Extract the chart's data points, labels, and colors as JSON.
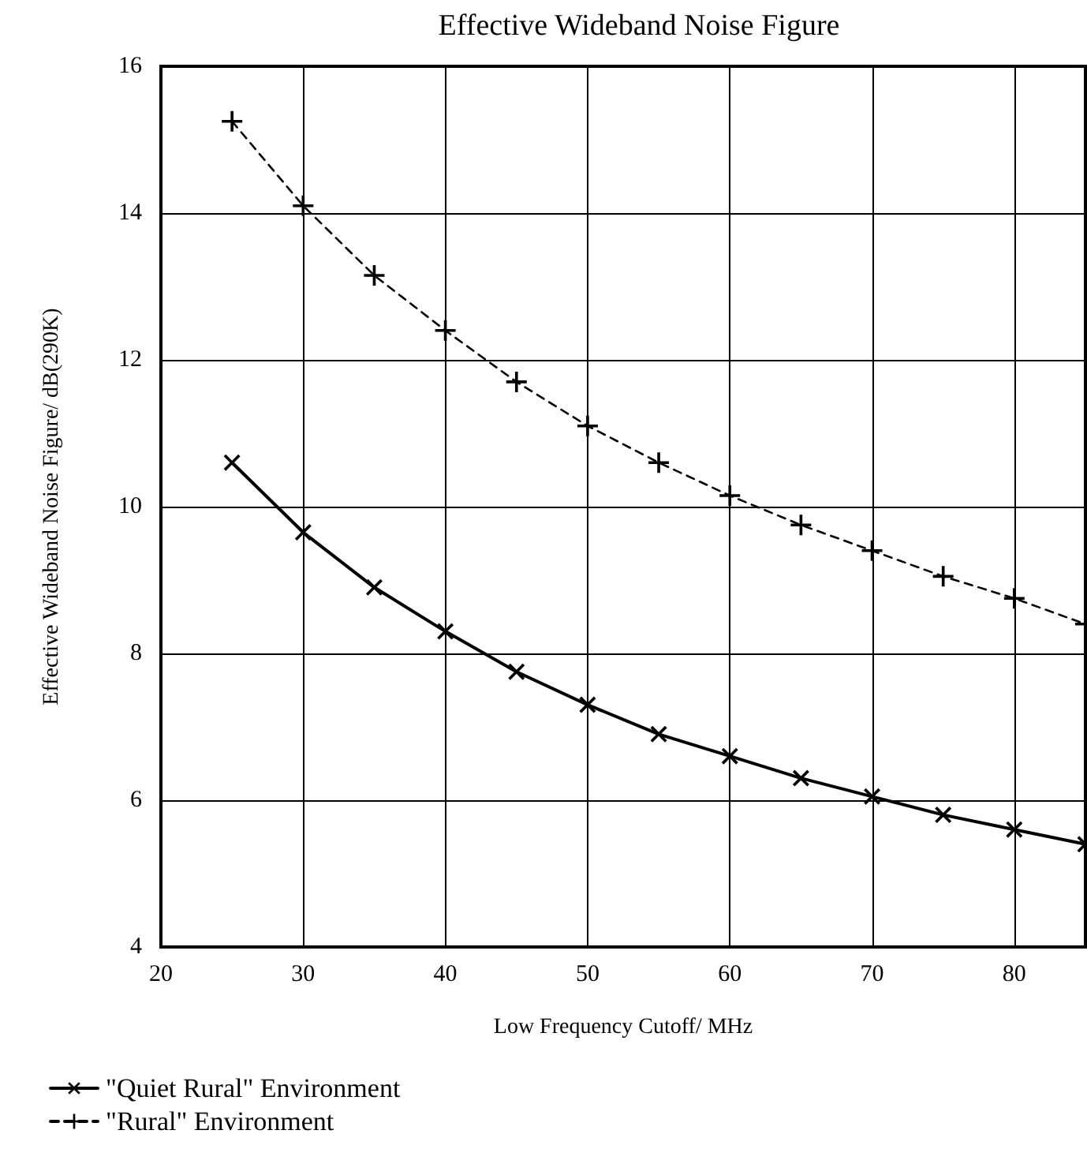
{
  "chart_data": {
    "type": "line",
    "title": "Effective Wideband Noise Figure",
    "xlabel": "Low Frequency Cutoff/ MHz",
    "ylabel": "Effective Wideband Noise Figure/ dB(290K)",
    "x": [
      25,
      30,
      35,
      40,
      45,
      50,
      55,
      60,
      65,
      70,
      75,
      80,
      85
    ],
    "series": [
      {
        "name": "\"Quiet Rural\" Environment",
        "color": "#000000",
        "marker": "x",
        "line_style": "solid",
        "values": [
          10.6,
          9.65,
          8.9,
          8.3,
          7.75,
          7.3,
          6.9,
          6.6,
          6.3,
          6.05,
          5.8,
          5.6,
          5.4
        ]
      },
      {
        "name": "\"Rural\" Environment",
        "color": "#000000",
        "marker": "cross",
        "line_style": "dashed",
        "values": [
          15.25,
          14.1,
          13.15,
          12.4,
          11.7,
          11.1,
          10.6,
          10.15,
          9.75,
          9.4,
          9.05,
          8.75,
          8.4
        ]
      }
    ],
    "xlim": [
      20,
      85
    ],
    "xticks": [
      20,
      30,
      40,
      50,
      60,
      70,
      80
    ],
    "ylim": [
      4,
      16
    ],
    "yticks": [
      4,
      6,
      8,
      10,
      12,
      14,
      16
    ],
    "grid": true,
    "legend": "bottom left"
  }
}
